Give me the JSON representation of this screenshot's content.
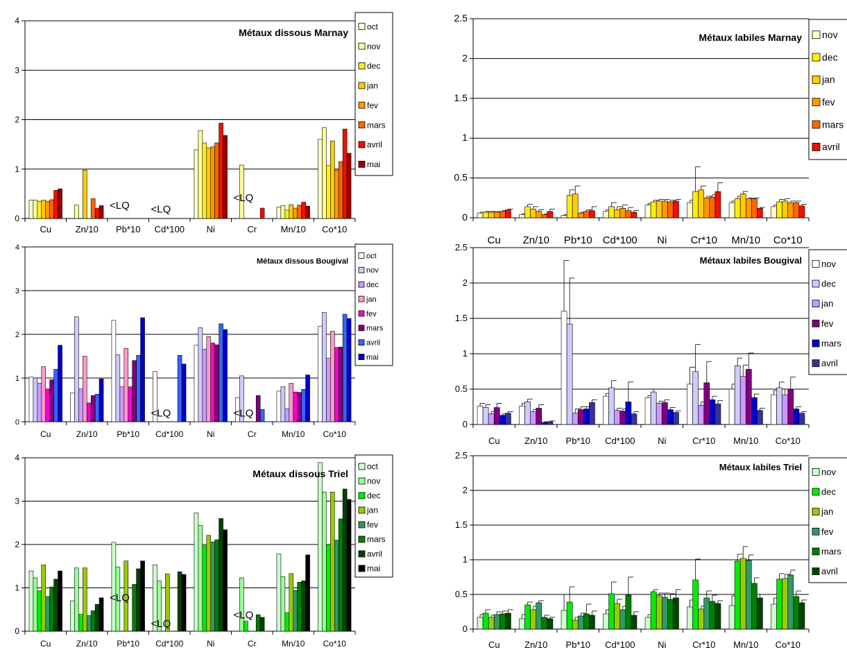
{
  "palettes": {
    "marnay": [
      "#ffffcc",
      "#ffff99",
      "#ffee22",
      "#ffcc00",
      "#ff9900",
      "#ff6600",
      "#ee1100",
      "#990000"
    ],
    "bougival": [
      "#ffffff",
      "#ccccff",
      "#cc99ff",
      "#ff99cc",
      "#ff00cc",
      "#800080",
      "#3366ff",
      "#0000cc"
    ],
    "triel": [
      "#ccffcc",
      "#99ff99",
      "#00ee00",
      "#99cc00",
      "#339966",
      "#008000",
      "#004400",
      "#000000"
    ],
    "labile_marnay": [
      "#ffffcc",
      "#ffee00",
      "#ffcc00",
      "#ff9900",
      "#ff6600",
      "#ee1100"
    ],
    "labile_bougival": [
      "#ffffff",
      "#ccccff",
      "#cc99ff",
      "#800080",
      "#0000cc",
      "#333399"
    ],
    "labile_triel": [
      "#ccffcc",
      "#00ee00",
      "#99cc00",
      "#339966",
      "#008000",
      "#004400"
    ]
  },
  "chart_data": [
    {
      "id": "marnay-dissous",
      "type": "bar",
      "title": "Métaux dissous Marnay",
      "categories": [
        "Cu",
        "Zn/10",
        "Pb*10",
        "Cd*100",
        "Ni",
        "Cr",
        "Mn/10",
        "Co*10"
      ],
      "ylim": [
        0,
        4
      ],
      "yticks": [
        "0",
        "1",
        "2",
        "3",
        "4"
      ],
      "legend": [
        "oct",
        "nov",
        "dec",
        "jan",
        "fev",
        "mars",
        "avril",
        "mai"
      ],
      "palette": "marnay",
      "series": [
        [
          0.37,
          null,
          null,
          null,
          1.39,
          null,
          0.23,
          1.6
        ],
        [
          0.37,
          0.27,
          null,
          null,
          1.78,
          1.08,
          0.26,
          1.84
        ],
        [
          0.35,
          null,
          null,
          null,
          1.53,
          null,
          0.17,
          1.07
        ],
        [
          0.37,
          0.98,
          null,
          null,
          1.43,
          null,
          0.28,
          1.57
        ],
        [
          0.35,
          null,
          null,
          null,
          1.45,
          null,
          0.21,
          0.98
        ],
        [
          0.38,
          0.4,
          null,
          null,
          1.53,
          null,
          0.27,
          1.15
        ],
        [
          0.57,
          0.21,
          null,
          null,
          1.93,
          0.21,
          0.33,
          1.81
        ],
        [
          0.6,
          0.26,
          null,
          null,
          1.68,
          null,
          0.25,
          1.32
        ]
      ],
      "annotations": [
        {
          "category": 2,
          "text": "<LQ",
          "y": 0.2
        },
        {
          "category": 3,
          "text": "<LQ",
          "y": 0.12
        },
        {
          "category": 5,
          "text": "<LQ",
          "y": 0.35
        }
      ]
    },
    {
      "id": "bougival-dissous",
      "type": "bar",
      "title": "Métaux dissous Bougival",
      "categories": [
        "Cu",
        "Zn/10",
        "Pb*10",
        "Cd*100",
        "Ni",
        "Cr",
        "Mn/10",
        "Co*10"
      ],
      "ylim": [
        0,
        4
      ],
      "yticks": [
        "0",
        "1",
        "2",
        "3",
        "4"
      ],
      "legend": [
        "oct",
        "nov",
        "dec",
        "jan",
        "fev",
        "mars",
        "avril",
        "mai"
      ],
      "palette": "bougival",
      "series": [
        [
          1.02,
          0.66,
          2.32,
          1.15,
          1.75,
          0.55,
          0.7,
          2.18
        ],
        [
          1.0,
          2.4,
          1.53,
          null,
          2.15,
          1.05,
          0.8,
          2.5
        ],
        [
          0.88,
          0.75,
          0.8,
          null,
          1.66,
          null,
          0.3,
          1.45
        ],
        [
          1.26,
          1.5,
          1.68,
          null,
          1.95,
          null,
          0.88,
          2.07
        ],
        [
          0.75,
          0.43,
          0.8,
          null,
          1.8,
          null,
          0.68,
          1.7
        ],
        [
          0.96,
          0.6,
          1.4,
          null,
          1.76,
          0.6,
          0.67,
          1.71
        ],
        [
          1.2,
          0.63,
          1.52,
          1.52,
          2.24,
          0.28,
          0.74,
          2.46
        ],
        [
          1.75,
          0.98,
          2.38,
          1.32,
          2.11,
          null,
          1.07,
          2.36
        ]
      ],
      "annotations": [
        {
          "category": 3,
          "text": "<LQ",
          "y": 0.12
        },
        {
          "category": 5,
          "text": "<LQ",
          "y": 0.12
        }
      ]
    },
    {
      "id": "triel-dissous",
      "type": "bar",
      "title": "Métaux dissous Triel",
      "categories": [
        "Cu",
        "Zn/10",
        "Pb*10",
        "Cd*100",
        "Ni",
        "Cr",
        "Mn/10",
        "Co*10"
      ],
      "ylim": [
        0,
        4
      ],
      "yticks": [
        "0",
        "1",
        "2",
        "3",
        "4"
      ],
      "legend": [
        "oct",
        "nov",
        "dec",
        "jan",
        "fev",
        "mars",
        "avril",
        "mai"
      ],
      "palette": "triel",
      "series": [
        [
          1.39,
          0.7,
          2.05,
          1.53,
          2.73,
          null,
          1.78,
          3.89
        ],
        [
          1.23,
          1.46,
          1.48,
          1.16,
          2.44,
          1.23,
          1.26,
          3.21
        ],
        [
          0.93,
          0.39,
          null,
          null,
          1.97,
          0.23,
          0.43,
          2.0
        ],
        [
          1.53,
          1.46,
          1.62,
          1.32,
          2.21,
          null,
          1.33,
          3.21
        ],
        [
          0.8,
          0.36,
          null,
          null,
          2.06,
          null,
          0.94,
          2.1
        ],
        [
          1.02,
          0.47,
          1.08,
          null,
          2.11,
          0.38,
          1.13,
          2.59
        ],
        [
          1.2,
          0.62,
          1.44,
          1.37,
          2.6,
          0.32,
          1.16,
          3.28
        ],
        [
          1.39,
          0.77,
          1.62,
          1.31,
          2.34,
          null,
          1.76,
          3.04
        ]
      ],
      "annotations": [
        {
          "category": 2,
          "text": "<LQ",
          "y": 0.7
        },
        {
          "category": 3,
          "text": "<LQ",
          "y": 0.1
        },
        {
          "category": 5,
          "text": "<LQ",
          "y": 0.3
        }
      ]
    },
    {
      "id": "marnay-labiles",
      "type": "bar",
      "title": "Métaux labiles Marnay",
      "categories": [
        "Cu",
        "Zn/10",
        "Pb*10",
        "Cd*100",
        "Ni",
        "Cr*10",
        "Mn/10",
        "Co*10"
      ],
      "ylim": [
        0,
        2.5
      ],
      "yticks": [
        "0",
        "0.5",
        "1",
        "1.5",
        "2",
        "2.5"
      ],
      "legend": [
        "nov",
        "dec",
        "jan",
        "fev",
        "mars",
        "avril"
      ],
      "palette": "labile_marnay",
      "series": [
        [
          0.06,
          0.04,
          0.03,
          0.08,
          0.16,
          0.19,
          0.19,
          0.14
        ],
        [
          0.07,
          0.14,
          0.28,
          0.14,
          0.2,
          0.33,
          0.24,
          0.2
        ],
        [
          0.07,
          0.11,
          0.3,
          0.1,
          0.21,
          0.35,
          0.3,
          0.21
        ],
        [
          0.07,
          0.08,
          0.06,
          0.12,
          0.21,
          0.25,
          0.24,
          0.19
        ],
        [
          0.08,
          0.04,
          0.08,
          0.09,
          0.2,
          0.26,
          0.24,
          0.19
        ],
        [
          0.1,
          0.08,
          0.09,
          0.07,
          0.21,
          0.33,
          0.12,
          0.15
        ]
      ],
      "errors": [
        [
          0.01,
          0.01,
          0.01,
          0.02,
          0.02,
          0.03,
          0.02,
          0.02
        ],
        [
          0.01,
          0.03,
          0.07,
          0.05,
          0.02,
          0.31,
          0.03,
          0.03
        ],
        [
          0.01,
          0.03,
          0.1,
          0.04,
          0.02,
          0.05,
          0.03,
          0.03
        ],
        [
          0.01,
          0.02,
          0.01,
          0.04,
          0.02,
          0.02,
          0.01,
          0.02
        ],
        [
          0.01,
          0.01,
          0.02,
          0.04,
          0.02,
          0.03,
          0.01,
          0.02
        ],
        [
          0.01,
          0.03,
          0.05,
          0.02,
          0.02,
          0.11,
          0.01,
          0.02
        ]
      ]
    },
    {
      "id": "bougival-labiles",
      "type": "bar",
      "title": "Métaux labiles Bougival",
      "categories": [
        "Cu",
        "Zn/10",
        "Pb*10",
        "Cd*100",
        "Ni",
        "Cr*10",
        "Mn/10",
        "Co*10"
      ],
      "ylim": [
        0,
        2.5
      ],
      "yticks": [
        "0",
        "0.5",
        "1",
        "1.5",
        "2",
        "2.5"
      ],
      "legend": [
        "nov",
        "dec",
        "jan",
        "fev",
        "mars",
        "avril"
      ],
      "palette": "labile_bougival",
      "series": [
        [
          0.26,
          0.26,
          1.6,
          0.4,
          0.38,
          0.57,
          0.5,
          0.42
        ],
        [
          0.24,
          0.32,
          1.42,
          0.52,
          0.46,
          0.75,
          0.83,
          0.52
        ],
        [
          0.15,
          0.18,
          0.16,
          0.2,
          0.3,
          0.27,
          0.68,
          0.42
        ],
        [
          0.24,
          0.23,
          0.21,
          0.19,
          0.31,
          0.59,
          0.78,
          0.5
        ],
        [
          0.13,
          0.03,
          0.22,
          0.32,
          0.21,
          0.35,
          0.38,
          0.22
        ],
        [
          0.16,
          0.04,
          0.31,
          0.15,
          0.17,
          0.29,
          0.2,
          0.16
        ]
      ],
      "errors": [
        [
          0.04,
          0.04,
          0.72,
          0.04,
          0.03,
          0.24,
          0.07,
          0.06
        ],
        [
          0.04,
          0.04,
          0.65,
          0.1,
          0.04,
          0.38,
          0.11,
          0.08
        ],
        [
          0.03,
          0.03,
          0.06,
          0.03,
          0.03,
          0.05,
          0.16,
          0.08
        ],
        [
          0.06,
          0.05,
          0.04,
          0.03,
          0.04,
          0.3,
          0.23,
          0.17
        ],
        [
          0.02,
          0.01,
          0.03,
          0.28,
          0.03,
          0.05,
          0.05,
          0.03
        ],
        [
          0.02,
          0.01,
          0.04,
          0.03,
          0.02,
          0.05,
          0.03,
          0.02
        ]
      ]
    },
    {
      "id": "triel-labiles",
      "type": "bar",
      "title": "Métaux labiles Triel",
      "categories": [
        "Cu",
        "Zn/10",
        "Pb*10",
        "Cd*100",
        "Ni",
        "Cr*10",
        "Mn/10",
        "Co*10"
      ],
      "ylim": [
        0,
        2.5
      ],
      "yticks": [
        "0",
        "0.5",
        "1",
        "1.5",
        "2",
        "2.5"
      ],
      "legend": [
        "nov",
        "dec",
        "jan",
        "fev",
        "mars",
        "avril"
      ],
      "palette": "labile_triel",
      "series": [
        [
          0.17,
          0.15,
          0.27,
          0.22,
          0.17,
          0.32,
          0.34,
          0.36
        ],
        [
          0.23,
          0.35,
          0.39,
          0.51,
          0.54,
          0.71,
          0.98,
          0.72
        ],
        [
          0.17,
          0.28,
          0.13,
          0.37,
          0.48,
          0.29,
          1.02,
          0.73
        ],
        [
          0.21,
          0.38,
          0.19,
          0.28,
          0.46,
          0.45,
          0.99,
          0.78
        ],
        [
          0.22,
          0.17,
          0.22,
          0.49,
          0.43,
          0.4,
          0.66,
          0.47
        ],
        [
          0.23,
          0.15,
          0.2,
          0.2,
          0.45,
          0.37,
          0.45,
          0.38
        ]
      ],
      "errors": [
        [
          0.04,
          0.06,
          0.23,
          0.06,
          0.04,
          0.1,
          0.14,
          0.09
        ],
        [
          0.05,
          0.04,
          0.22,
          0.17,
          0.03,
          0.3,
          0.1,
          0.08
        ],
        [
          0.03,
          0.05,
          0.04,
          0.06,
          0.04,
          0.04,
          0.17,
          0.06
        ],
        [
          0.04,
          0.03,
          0.04,
          0.05,
          0.06,
          0.1,
          0.08,
          0.07
        ],
        [
          0.04,
          0.03,
          0.14,
          0.26,
          0.08,
          0.09,
          0.08,
          0.08
        ],
        [
          0.05,
          0.02,
          0.06,
          0.05,
          0.12,
          0.04,
          0.05,
          0.04
        ]
      ]
    }
  ]
}
